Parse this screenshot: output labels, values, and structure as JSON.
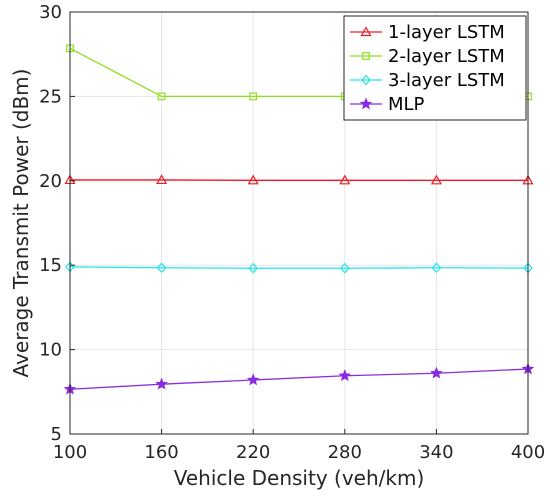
{
  "chart_data": {
    "type": "line",
    "title": "",
    "xlabel": "Vehicle Density (veh/km)",
    "ylabel": "Average Transmit Power (dBm)",
    "x": [
      100,
      160,
      220,
      280,
      340,
      400
    ],
    "xticks": [
      "100",
      "160",
      "220",
      "280",
      "340",
      "400"
    ],
    "yticks": [
      "5",
      "10",
      "15",
      "20",
      "25",
      "30"
    ],
    "xlim": [
      100,
      400
    ],
    "ylim": [
      5,
      30
    ],
    "grid": true,
    "legend_position": "top-right",
    "series": [
      {
        "name": "1-layer LSTM",
        "color": "#ee1c24",
        "marker": "triangle",
        "values": [
          20.05,
          20.05,
          20.03,
          20.03,
          20.03,
          20.03
        ]
      },
      {
        "name": "2-layer LSTM",
        "color": "#8ce020",
        "marker": "square",
        "values": [
          27.85,
          25.0,
          25.0,
          25.0,
          25.0,
          25.0
        ]
      },
      {
        "name": "3-layer LSTM",
        "color": "#20e8e8",
        "marker": "diamond",
        "values": [
          14.9,
          14.85,
          14.82,
          14.82,
          14.85,
          14.83
        ]
      },
      {
        "name": "MLP",
        "color": "#8a2be2",
        "marker": "star",
        "values": [
          7.65,
          7.95,
          8.2,
          8.45,
          8.6,
          8.85
        ]
      }
    ]
  }
}
